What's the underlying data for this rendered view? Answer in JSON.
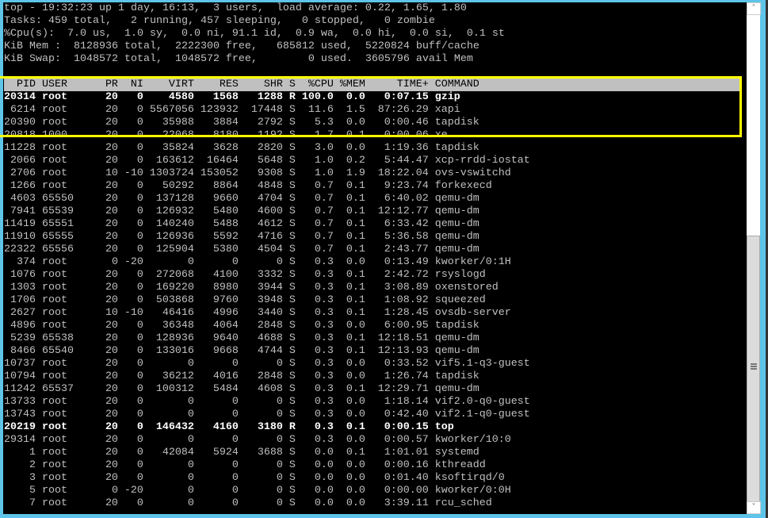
{
  "summary": [
    "top - 19:32:23 up 1 day, 16:13,  3 users,  load average: 0.22, 1.65, 1.80",
    "Tasks: 459 total,   2 running, 457 sleeping,   0 stopped,   0 zombie",
    "%Cpu(s):  7.0 us,  1.0 sy,  0.0 ni, 91.1 id,  0.9 wa,  0.0 hi,  0.0 si,  0.1 st",
    "KiB Mem :  8128936 total,  2222300 free,   685812 used,  5220824 buff/cache",
    "KiB Swap:  1048572 total,  1048572 free,        0 used.  3605796 avail Mem"
  ],
  "columns": [
    "PID",
    "USER",
    "PR",
    "NI",
    "VIRT",
    "RES",
    "SHR",
    "S",
    "%CPU",
    "%MEM",
    "TIME+",
    "COMMAND"
  ],
  "highlight_color": "#ffff00",
  "processes": [
    [
      "20314",
      "root",
      "20",
      "0",
      "4580",
      "1568",
      "1288",
      "R",
      "100.0",
      "0.0",
      "0:07.15",
      "gzip",
      true
    ],
    [
      "6214",
      "root",
      "20",
      "0",
      "5567056",
      "123932",
      "17448",
      "S",
      "11.6",
      "1.5",
      "87:26.29",
      "xapi",
      false
    ],
    [
      "20390",
      "root",
      "20",
      "0",
      "35988",
      "3884",
      "2792",
      "S",
      "5.3",
      "0.0",
      "0:00.46",
      "tapdisk",
      false
    ],
    [
      "20818",
      "1000",
      "20",
      "0",
      "22068",
      "8180",
      "1192",
      "S",
      "1.7",
      "0.1",
      "0:00.06",
      "xe",
      false
    ],
    [
      "11228",
      "root",
      "20",
      "0",
      "35824",
      "3628",
      "2820",
      "S",
      "3.0",
      "0.0",
      "1:19.36",
      "tapdisk",
      false
    ],
    [
      "2066",
      "root",
      "20",
      "0",
      "163612",
      "16464",
      "5648",
      "S",
      "1.0",
      "0.2",
      "5:44.47",
      "xcp-rrdd-iostat",
      false
    ],
    [
      "2706",
      "root",
      "10",
      "-10",
      "1303724",
      "153052",
      "9308",
      "S",
      "1.0",
      "1.9",
      "18:22.04",
      "ovs-vswitchd",
      false
    ],
    [
      "1266",
      "root",
      "20",
      "0",
      "50292",
      "8864",
      "4848",
      "S",
      "0.7",
      "0.1",
      "9:23.74",
      "forkexecd",
      false
    ],
    [
      "4603",
      "65550",
      "20",
      "0",
      "137128",
      "9660",
      "4704",
      "S",
      "0.7",
      "0.1",
      "6:40.02",
      "qemu-dm",
      false
    ],
    [
      "7941",
      "65539",
      "20",
      "0",
      "126932",
      "5480",
      "4600",
      "S",
      "0.7",
      "0.1",
      "12:12.77",
      "qemu-dm",
      false
    ],
    [
      "11419",
      "65551",
      "20",
      "0",
      "140240",
      "5488",
      "4612",
      "S",
      "0.7",
      "0.1",
      "6:33.42",
      "qemu-dm",
      false
    ],
    [
      "11910",
      "65555",
      "20",
      "0",
      "126936",
      "5592",
      "4716",
      "S",
      "0.7",
      "0.1",
      "5:36.58",
      "qemu-dm",
      false
    ],
    [
      "22322",
      "65556",
      "20",
      "0",
      "125904",
      "5380",
      "4504",
      "S",
      "0.7",
      "0.1",
      "2:43.77",
      "qemu-dm",
      false
    ],
    [
      "374",
      "root",
      "0",
      "-20",
      "0",
      "0",
      "0",
      "S",
      "0.3",
      "0.0",
      "0:13.49",
      "kworker/0:1H",
      false
    ],
    [
      "1076",
      "root",
      "20",
      "0",
      "272068",
      "4100",
      "3332",
      "S",
      "0.3",
      "0.1",
      "2:42.72",
      "rsyslogd",
      false
    ],
    [
      "1303",
      "root",
      "20",
      "0",
      "169220",
      "8980",
      "3944",
      "S",
      "0.3",
      "0.1",
      "3:08.89",
      "oxenstored",
      false
    ],
    [
      "1706",
      "root",
      "20",
      "0",
      "503868",
      "9760",
      "3948",
      "S",
      "0.3",
      "0.1",
      "1:08.92",
      "squeezed",
      false
    ],
    [
      "2627",
      "root",
      "10",
      "-10",
      "46416",
      "4996",
      "3440",
      "S",
      "0.3",
      "0.1",
      "1:28.45",
      "ovsdb-server",
      false
    ],
    [
      "4896",
      "root",
      "20",
      "0",
      "36348",
      "4064",
      "2848",
      "S",
      "0.3",
      "0.0",
      "6:00.95",
      "tapdisk",
      false
    ],
    [
      "5239",
      "65538",
      "20",
      "0",
      "128936",
      "9640",
      "4688",
      "S",
      "0.3",
      "0.1",
      "12:18.51",
      "qemu-dm",
      false
    ],
    [
      "8466",
      "65540",
      "20",
      "0",
      "133016",
      "9668",
      "4744",
      "S",
      "0.3",
      "0.1",
      "12:13.93",
      "qemu-dm",
      false
    ],
    [
      "10737",
      "root",
      "20",
      "0",
      "0",
      "0",
      "0",
      "S",
      "0.3",
      "0.0",
      "0:33.52",
      "vif5.1-q3-guest",
      false
    ],
    [
      "10794",
      "root",
      "20",
      "0",
      "36212",
      "4016",
      "2848",
      "S",
      "0.3",
      "0.0",
      "1:26.74",
      "tapdisk",
      false
    ],
    [
      "11242",
      "65537",
      "20",
      "0",
      "100312",
      "5484",
      "4608",
      "S",
      "0.3",
      "0.1",
      "12:29.71",
      "qemu-dm",
      false
    ],
    [
      "13733",
      "root",
      "20",
      "0",
      "0",
      "0",
      "0",
      "S",
      "0.3",
      "0.0",
      "1:18.14",
      "vif2.0-q0-guest",
      false
    ],
    [
      "13743",
      "root",
      "20",
      "0",
      "0",
      "0",
      "0",
      "S",
      "0.3",
      "0.0",
      "0:42.40",
      "vif2.1-q0-guest",
      false
    ],
    [
      "20219",
      "root",
      "20",
      "0",
      "146432",
      "4160",
      "3180",
      "R",
      "0.3",
      "0.1",
      "0:00.15",
      "top",
      true
    ],
    [
      "29314",
      "root",
      "20",
      "0",
      "0",
      "0",
      "0",
      "S",
      "0.3",
      "0.0",
      "0:00.57",
      "kworker/10:0",
      false
    ],
    [
      "1",
      "root",
      "20",
      "0",
      "42084",
      "5924",
      "3688",
      "S",
      "0.0",
      "0.1",
      "1:01.01",
      "systemd",
      false
    ],
    [
      "2",
      "root",
      "20",
      "0",
      "0",
      "0",
      "0",
      "S",
      "0.0",
      "0.0",
      "0:00.16",
      "kthreadd",
      false
    ],
    [
      "3",
      "root",
      "20",
      "0",
      "0",
      "0",
      "0",
      "S",
      "0.0",
      "0.0",
      "0:01.40",
      "ksoftirqd/0",
      false
    ],
    [
      "5",
      "root",
      "0",
      "-20",
      "0",
      "0",
      "0",
      "S",
      "0.0",
      "0.0",
      "0:00.00",
      "kworker/0:0H",
      false
    ],
    [
      "7",
      "root",
      "20",
      "0",
      "0",
      "0",
      "0",
      "S",
      "0.0",
      "0.0",
      "3:39.11",
      "rcu_sched",
      false
    ]
  ],
  "scrollbar": {
    "up_icon": "chevron-up",
    "down_icon": "chevron-down",
    "grip_icon": "grip-lines"
  }
}
